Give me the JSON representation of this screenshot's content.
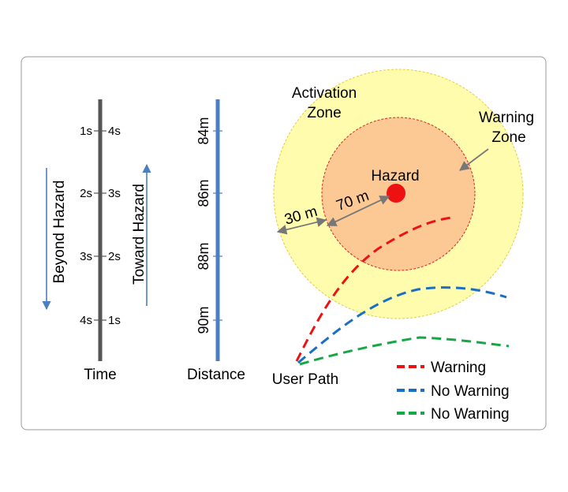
{
  "time_axis": {
    "label": "Time",
    "rows": [
      {
        "left": "1s",
        "right": "4s"
      },
      {
        "left": "2s",
        "right": "3s"
      },
      {
        "left": "3s",
        "right": "2s"
      },
      {
        "left": "4s",
        "right": "1s"
      }
    ],
    "beyond_label": "Beyond Hazard",
    "toward_label": "Toward Hazard"
  },
  "distance_axis": {
    "label": "Distance",
    "ticks": [
      "84m",
      "86m",
      "88m",
      "90m"
    ]
  },
  "zones": {
    "activation_line1": "Activation",
    "activation_line2": "Zone",
    "warning_line1": "Warning",
    "warning_line2": "Zone",
    "hazard": "Hazard",
    "dist_outer": "30 m",
    "dist_inner": "70 m"
  },
  "user_path_label": "User Path",
  "legend": [
    {
      "label": "Warning",
      "color": "#ee1111"
    },
    {
      "label": "No Warning",
      "color": "#1a6fc4"
    },
    {
      "label": "No Warning",
      "color": "#16a844"
    }
  ],
  "colors": {
    "activation_fill": "#fffcae",
    "warning_fill": "#fcc995",
    "hazard": "#ee1111",
    "time_bar": "#555555",
    "distance_bar": "#4a7fc1",
    "arrow": "#4a7fc1",
    "pointer": "#777777"
  }
}
